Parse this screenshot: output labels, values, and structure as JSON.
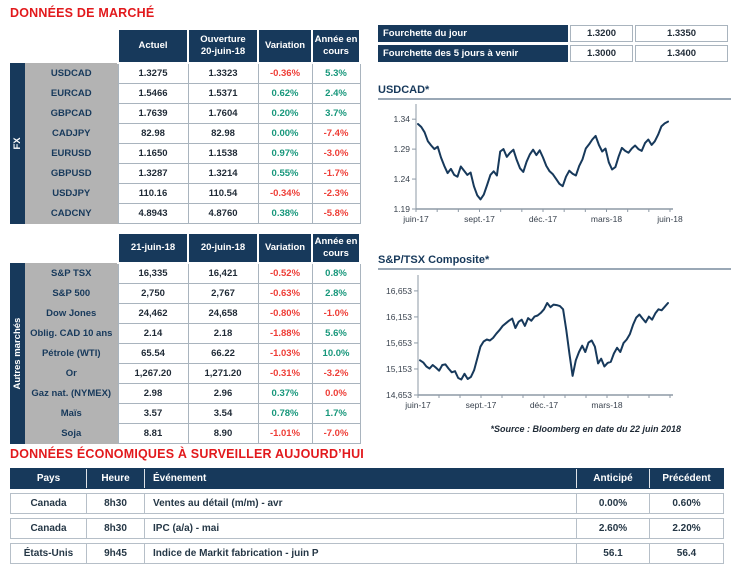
{
  "colors": {
    "navy": "#17395B",
    "title_red": "#E2191C",
    "positive_green": "#17977B",
    "negative_red": "#EE3D36",
    "row_label_gray": "#B3B3B3",
    "cell_border": "#A9B4BE"
  },
  "market": {
    "title": "DONNÉES DE MARCHÉ",
    "fx": {
      "side_label": "FX",
      "headers": [
        "Actuel",
        "Ouverture\n20-juin-18",
        "Variation",
        "Année en\ncours"
      ],
      "rows": [
        {
          "label": "USDCAD",
          "c1": "1.3275",
          "c2": "1.3323",
          "variation": "-0.36%",
          "var_dir": "down",
          "ytd": "5.3%",
          "ytd_dir": "up"
        },
        {
          "label": "EURCAD",
          "c1": "1.5466",
          "c2": "1.5371",
          "variation": "0.62%",
          "var_dir": "up",
          "ytd": "2.4%",
          "ytd_dir": "up"
        },
        {
          "label": "GBPCAD",
          "c1": "1.7639",
          "c2": "1.7604",
          "variation": "0.20%",
          "var_dir": "up",
          "ytd": "3.7%",
          "ytd_dir": "up"
        },
        {
          "label": "CADJPY",
          "c1": "82.98",
          "c2": "82.98",
          "variation": "0.00%",
          "var_dir": "up",
          "ytd": "-7.4%",
          "ytd_dir": "down"
        },
        {
          "label": "EURUSD",
          "c1": "1.1650",
          "c2": "1.1538",
          "variation": "0.97%",
          "var_dir": "up",
          "ytd": "-3.0%",
          "ytd_dir": "down"
        },
        {
          "label": "GBPUSD",
          "c1": "1.3287",
          "c2": "1.3214",
          "variation": "0.55%",
          "var_dir": "up",
          "ytd": "-1.7%",
          "ytd_dir": "down"
        },
        {
          "label": "USDJPY",
          "c1": "110.16",
          "c2": "110.54",
          "variation": "-0.34%",
          "var_dir": "down",
          "ytd": "-2.3%",
          "ytd_dir": "down"
        },
        {
          "label": "CADCNY",
          "c1": "4.8943",
          "c2": "4.8760",
          "variation": "0.38%",
          "var_dir": "up",
          "ytd": "-5.8%",
          "ytd_dir": "down"
        }
      ]
    },
    "markets": {
      "side_label": "Autres marchés",
      "headers": [
        "21-juin-18",
        "20-juin-18",
        "Variation",
        "Année en\ncours"
      ],
      "rows": [
        {
          "label": "S&P TSX",
          "c1": "16,335",
          "c2": "16,421",
          "variation": "-0.52%",
          "var_dir": "down",
          "ytd": "0.8%",
          "ytd_dir": "up"
        },
        {
          "label": "S&P 500",
          "c1": "2,750",
          "c2": "2,767",
          "variation": "-0.63%",
          "var_dir": "down",
          "ytd": "2.8%",
          "ytd_dir": "up"
        },
        {
          "label": "Dow Jones",
          "c1": "24,462",
          "c2": "24,658",
          "variation": "-0.80%",
          "var_dir": "down",
          "ytd": "-1.0%",
          "ytd_dir": "down"
        },
        {
          "label": "Oblig. CAD 10 ans",
          "c1": "2.14",
          "c2": "2.18",
          "variation": "-1.88%",
          "var_dir": "down",
          "ytd": "5.6%",
          "ytd_dir": "up"
        },
        {
          "label": "Pétrole (WTI)",
          "c1": "65.54",
          "c2": "66.22",
          "variation": "-1.03%",
          "var_dir": "down",
          "ytd": "10.0%",
          "ytd_dir": "up"
        },
        {
          "label": "Or",
          "c1": "1,267.20",
          "c2": "1,271.20",
          "variation": "-0.31%",
          "var_dir": "down",
          "ytd": "-3.2%",
          "ytd_dir": "down"
        },
        {
          "label": "Gaz nat. (NYMEX)",
          "c1": "2.98",
          "c2": "2.96",
          "variation": "0.37%",
          "var_dir": "up",
          "ytd": "0.0%",
          "ytd_dir": "down"
        },
        {
          "label": "Maïs",
          "c1": "3.57",
          "c2": "3.54",
          "variation": "0.78%",
          "var_dir": "up",
          "ytd": "1.7%",
          "ytd_dir": "up"
        },
        {
          "label": "Soja",
          "c1": "8.81",
          "c2": "8.90",
          "variation": "-1.01%",
          "var_dir": "down",
          "ytd": "-7.0%",
          "ytd_dir": "down"
        }
      ]
    }
  },
  "ranges": {
    "rows": [
      {
        "label": "Fourchette du jour",
        "low": "1.3200",
        "high": "1.3350"
      },
      {
        "label": "Fourchette des 5 jours à venir",
        "low": "1.3000",
        "high": "1.3400"
      }
    ]
  },
  "source_note": "*Source : Bloomberg en date du  22 juin 2018",
  "econ": {
    "title": "DONNÉES ÉCONOMIQUES À SURVEILLER AUJOURD’HUI",
    "headers": [
      "Pays",
      "Heure",
      "Événement",
      "Anticipé",
      "Précédent"
    ],
    "rows": [
      {
        "pays": "Canada",
        "heure": "8h30",
        "evenement": "Ventes au détail (m/m) - avr",
        "anticipe": "0.00%",
        "precedent": "0.60%"
      },
      {
        "pays": "Canada",
        "heure": "8h30",
        "evenement": "IPC (a/a) - mai",
        "anticipe": "2.60%",
        "precedent": "2.20%"
      },
      {
        "pays": "États-Unis",
        "heure": "9h45",
        "evenement": "Indice de Markit fabrication - juin P",
        "anticipe": "56.1",
        "precedent": "56.4"
      }
    ]
  },
  "chart_data": [
    {
      "type": "line",
      "title": "USDCAD*",
      "line_color": "#17395B",
      "x_labels": [
        "juin-17",
        "sept.-17",
        "déc.-17",
        "mars-18",
        "juin-18"
      ],
      "x_pos": [
        0,
        0.25,
        0.5,
        0.75,
        1
      ],
      "yticks": [
        {
          "label": "1.34",
          "v": 1.34
        },
        {
          "label": "1.29",
          "v": 1.29
        },
        {
          "label": "1.24",
          "v": 1.24
        },
        {
          "label": "1.19",
          "v": 1.19
        }
      ],
      "ylim": [
        1.19,
        1.362
      ],
      "grid": false,
      "values": [
        1.332,
        1.327,
        1.318,
        1.303,
        1.296,
        1.29,
        1.294,
        1.276,
        1.262,
        1.25,
        1.257,
        1.247,
        1.244,
        1.261,
        1.254,
        1.247,
        1.251,
        1.228,
        1.213,
        1.206,
        1.214,
        1.23,
        1.247,
        1.253,
        1.246,
        1.286,
        1.29,
        1.277,
        1.284,
        1.289,
        1.272,
        1.258,
        1.252,
        1.269,
        1.281,
        1.289,
        1.28,
        1.288,
        1.276,
        1.262,
        1.253,
        1.248,
        1.24,
        1.232,
        1.228,
        1.244,
        1.254,
        1.249,
        1.246,
        1.262,
        1.273,
        1.291,
        1.298,
        1.306,
        1.312,
        1.297,
        1.286,
        1.291,
        1.268,
        1.256,
        1.26,
        1.278,
        1.292,
        1.287,
        1.284,
        1.291,
        1.296,
        1.29,
        1.287,
        1.3,
        1.306,
        1.297,
        1.303,
        1.314,
        1.328,
        1.333,
        1.336
      ]
    },
    {
      "type": "line",
      "title": "S&P/TSX Composite*",
      "line_color": "#17395B",
      "x_labels": [
        "juin-17",
        "sept.-17",
        "déc.-17",
        "mars-18"
      ],
      "x_pos": [
        0,
        0.25,
        0.5,
        0.75
      ],
      "yticks": [
        {
          "label": "16,653",
          "v": 16653
        },
        {
          "label": "16,153",
          "v": 16153
        },
        {
          "label": "15,653",
          "v": 15653
        },
        {
          "label": "15,153",
          "v": 15153
        },
        {
          "label": "14,653",
          "v": 14653
        }
      ],
      "ylim": [
        14653,
        16920
      ],
      "grid": false,
      "values": [
        15320,
        15280,
        15200,
        15160,
        15230,
        15180,
        15120,
        15230,
        15240,
        15160,
        15090,
        15110,
        14980,
        14950,
        15060,
        14960,
        15000,
        15130,
        15350,
        15580,
        15680,
        15720,
        15700,
        15750,
        15830,
        15900,
        15980,
        16030,
        16080,
        16120,
        15940,
        16060,
        16100,
        15980,
        16130,
        16080,
        16160,
        16180,
        16230,
        16300,
        16420,
        16340,
        16390,
        16380,
        16360,
        16300,
        15900,
        15450,
        15020,
        15320,
        15480,
        15600,
        15480,
        15660,
        15700,
        15580,
        15260,
        15350,
        15200,
        15270,
        15290,
        15450,
        15560,
        15480,
        15650,
        15720,
        15820,
        16000,
        16140,
        16200,
        16120,
        16050,
        16160,
        16100,
        16220,
        16300,
        16280,
        16350,
        16420
      ]
    }
  ]
}
